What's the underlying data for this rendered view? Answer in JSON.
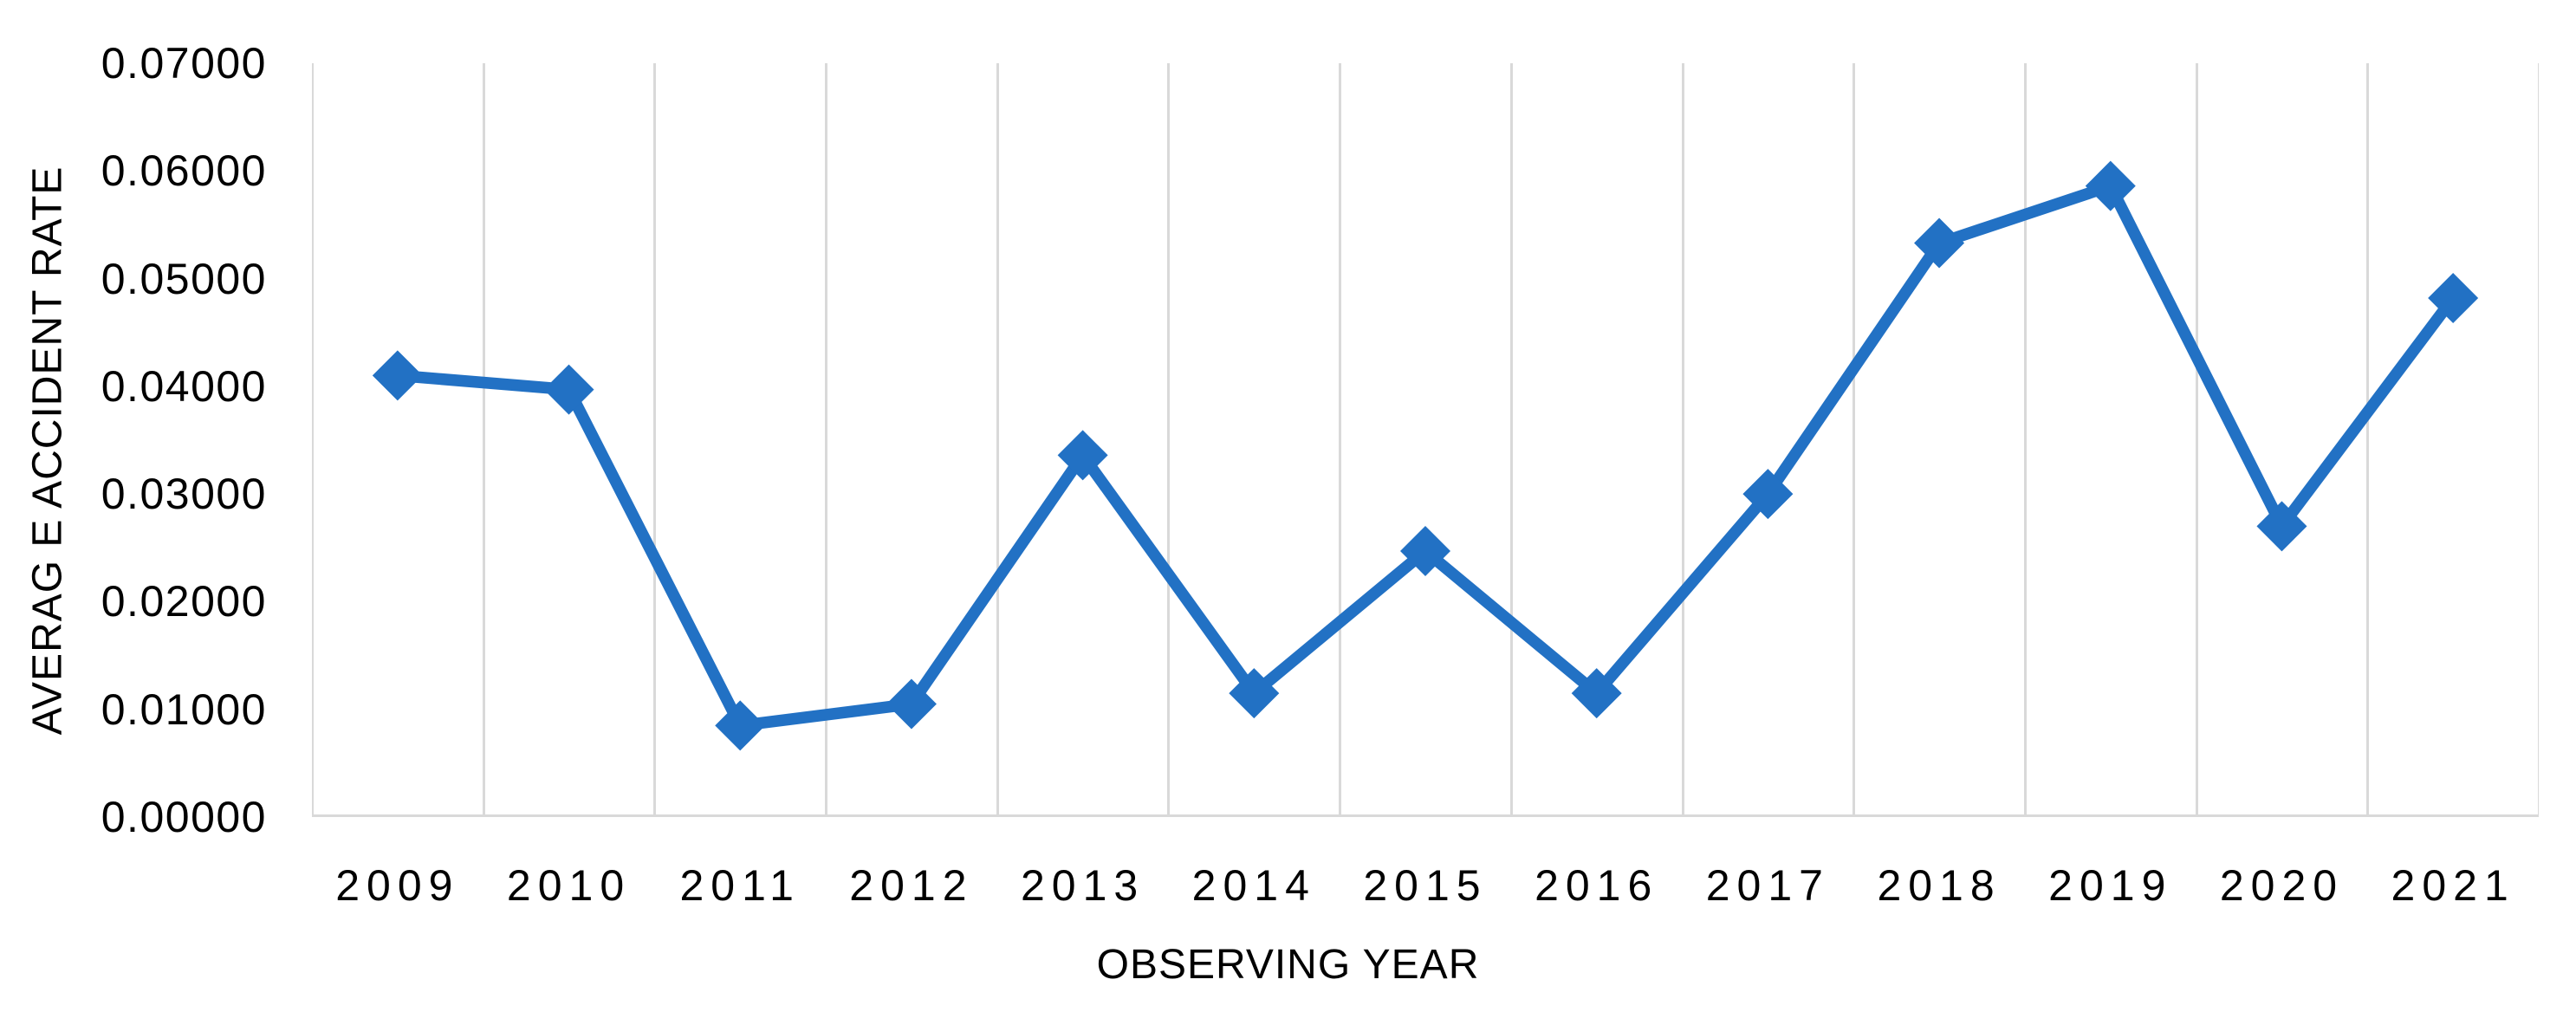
{
  "chart_data": {
    "type": "line",
    "title": "",
    "categories": [
      "2009",
      "2010",
      "2011",
      "2012",
      "2013",
      "2014",
      "2015",
      "2016",
      "2017",
      "2018",
      "2019",
      "2020",
      "2021"
    ],
    "series": [
      {
        "values": [
          0.041,
          0.0397,
          0.0085,
          0.0105,
          0.0336,
          0.0115,
          0.0247,
          0.0115,
          0.03,
          0.0533,
          0.0586,
          0.027,
          0.0482
        ]
      }
    ],
    "xlabel": "OBSERVING YEAR",
    "ylabel": "AVERAG E ACCIDENT RATE",
    "ylim": [
      0,
      0.07
    ],
    "ytick_step": 0.01,
    "ytick_labels": [
      "0.00000",
      "0.01000",
      "0.02000",
      "0.03000",
      "0.04000",
      "0.05000",
      "0.06000",
      "0.07000"
    ],
    "grid": "vertical-only",
    "legend_position": "none",
    "marker": "diamond",
    "line_color": "#2271C4",
    "grid_color": "#D9D9D9",
    "text_color": "#000000"
  }
}
